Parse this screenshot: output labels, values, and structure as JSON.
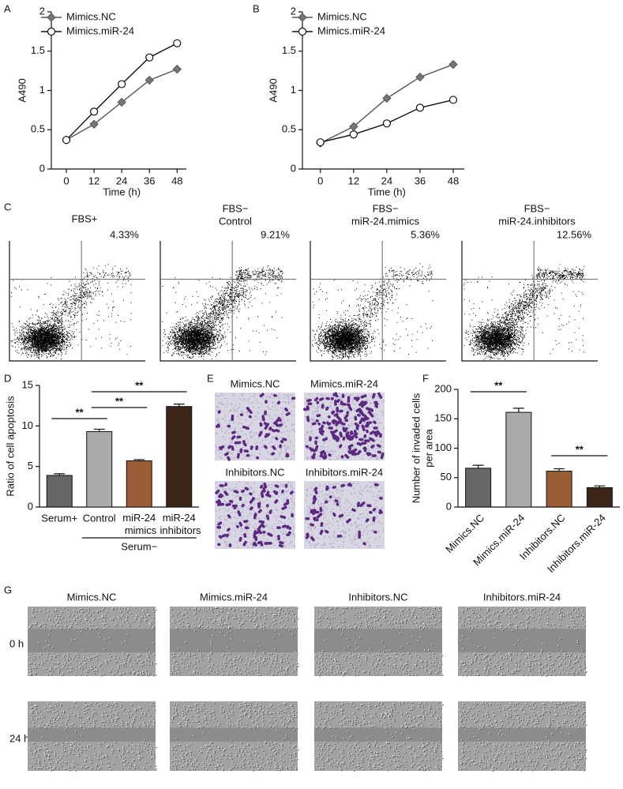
{
  "panel_labels": [
    "A",
    "B",
    "C",
    "D",
    "E",
    "F",
    "G"
  ],
  "chart_data": [
    {
      "type": "line",
      "xlabel": "Time (h)",
      "ylabel": "A490",
      "x": [
        0,
        12,
        24,
        36,
        48
      ],
      "xlim": [
        -6.5,
        52
      ],
      "xticks": [
        0,
        12,
        24,
        36,
        48
      ],
      "ylim": [
        0,
        2
      ],
      "yticks": [
        0,
        0.5,
        1,
        1.5,
        2
      ],
      "series": [
        {
          "name": "Mimics.NC",
          "color": "#555555",
          "marker": "diamond",
          "values": [
            0.37,
            0.57,
            0.85,
            1.13,
            1.27
          ]
        },
        {
          "name": "Mimics.miR-24",
          "color": "#111111",
          "marker": "circle",
          "values": [
            0.37,
            0.73,
            1.08,
            1.42,
            1.6
          ]
        }
      ]
    },
    {
      "type": "line",
      "xlabel": "Time (h)",
      "ylabel": "A490",
      "x": [
        0,
        12,
        24,
        36,
        48
      ],
      "xlim": [
        -6.5,
        52
      ],
      "xticks": [
        0,
        12,
        24,
        36,
        48
      ],
      "ylim": [
        0,
        2
      ],
      "yticks": [
        0,
        0.5,
        1,
        1.5,
        2
      ],
      "series": [
        {
          "name": "Mimics.NC",
          "color": "#555555",
          "marker": "diamond",
          "values": [
            0.33,
            0.54,
            0.9,
            1.17,
            1.33
          ]
        },
        {
          "name": "Mimics.miR-24",
          "color": "#111111",
          "marker": "circle",
          "values": [
            0.34,
            0.44,
            0.58,
            0.78,
            0.88
          ]
        }
      ]
    },
    {
      "type": "bar",
      "ylabel": "Ratio of cell apoptosis",
      "categories": [
        "Serum+",
        "Control",
        "miR-24 mimics",
        "miR-24 inhibitors"
      ],
      "values": [
        3.9,
        9.3,
        5.7,
        12.4
      ],
      "errors": [
        0.2,
        0.3,
        0.15,
        0.3
      ],
      "colors": [
        "#666666",
        "#aaaaaa",
        "#9b5d35",
        "#3b2418"
      ],
      "ylim": [
        0,
        15
      ],
      "yticks": [
        0,
        5,
        10,
        15
      ],
      "group_label": "Serum−",
      "annotations": [
        "**",
        "**",
        "**"
      ]
    },
    {
      "type": "bar",
      "ylabel": [
        "Number of invaded cells",
        "per area"
      ],
      "categories": [
        "Mimics.NC",
        "Mimics.miR-24",
        "Inhibitors.NC",
        "Inhibitors.miR-24"
      ],
      "values": [
        66,
        161,
        61,
        33
      ],
      "errors": [
        5,
        7,
        4,
        3
      ],
      "colors": [
        "#666666",
        "#aaaaaa",
        "#9b5d35",
        "#3b2418"
      ],
      "ylim": [
        0,
        200
      ],
      "yticks": [
        0,
        50,
        100,
        150,
        200
      ],
      "annotations": [
        "**",
        "**"
      ]
    }
  ],
  "flow_cytometry": {
    "panels": [
      {
        "title": [
          "FBS+"
        ],
        "percent": "4.33%"
      },
      {
        "title": [
          "FBS−",
          "Control"
        ],
        "percent": "9.21%"
      },
      {
        "title": [
          "FBS−",
          "miR-24.mimics"
        ],
        "percent": "5.36%"
      },
      {
        "title": [
          "FBS−",
          "miR-24.inhibitors"
        ],
        "percent": "12.56%"
      }
    ]
  },
  "transwell": {
    "labels": [
      "Mimics.NC",
      "Mimics.miR-24",
      "Inhibitors.NC",
      "Inhibitors.miR-24"
    ]
  },
  "wound_healing": {
    "columns": [
      "Mimics.NC",
      "Mimics.miR-24",
      "Inhibitors.NC",
      "Inhibitors.miR-24"
    ],
    "rows": [
      "0 h",
      "24 h"
    ]
  }
}
